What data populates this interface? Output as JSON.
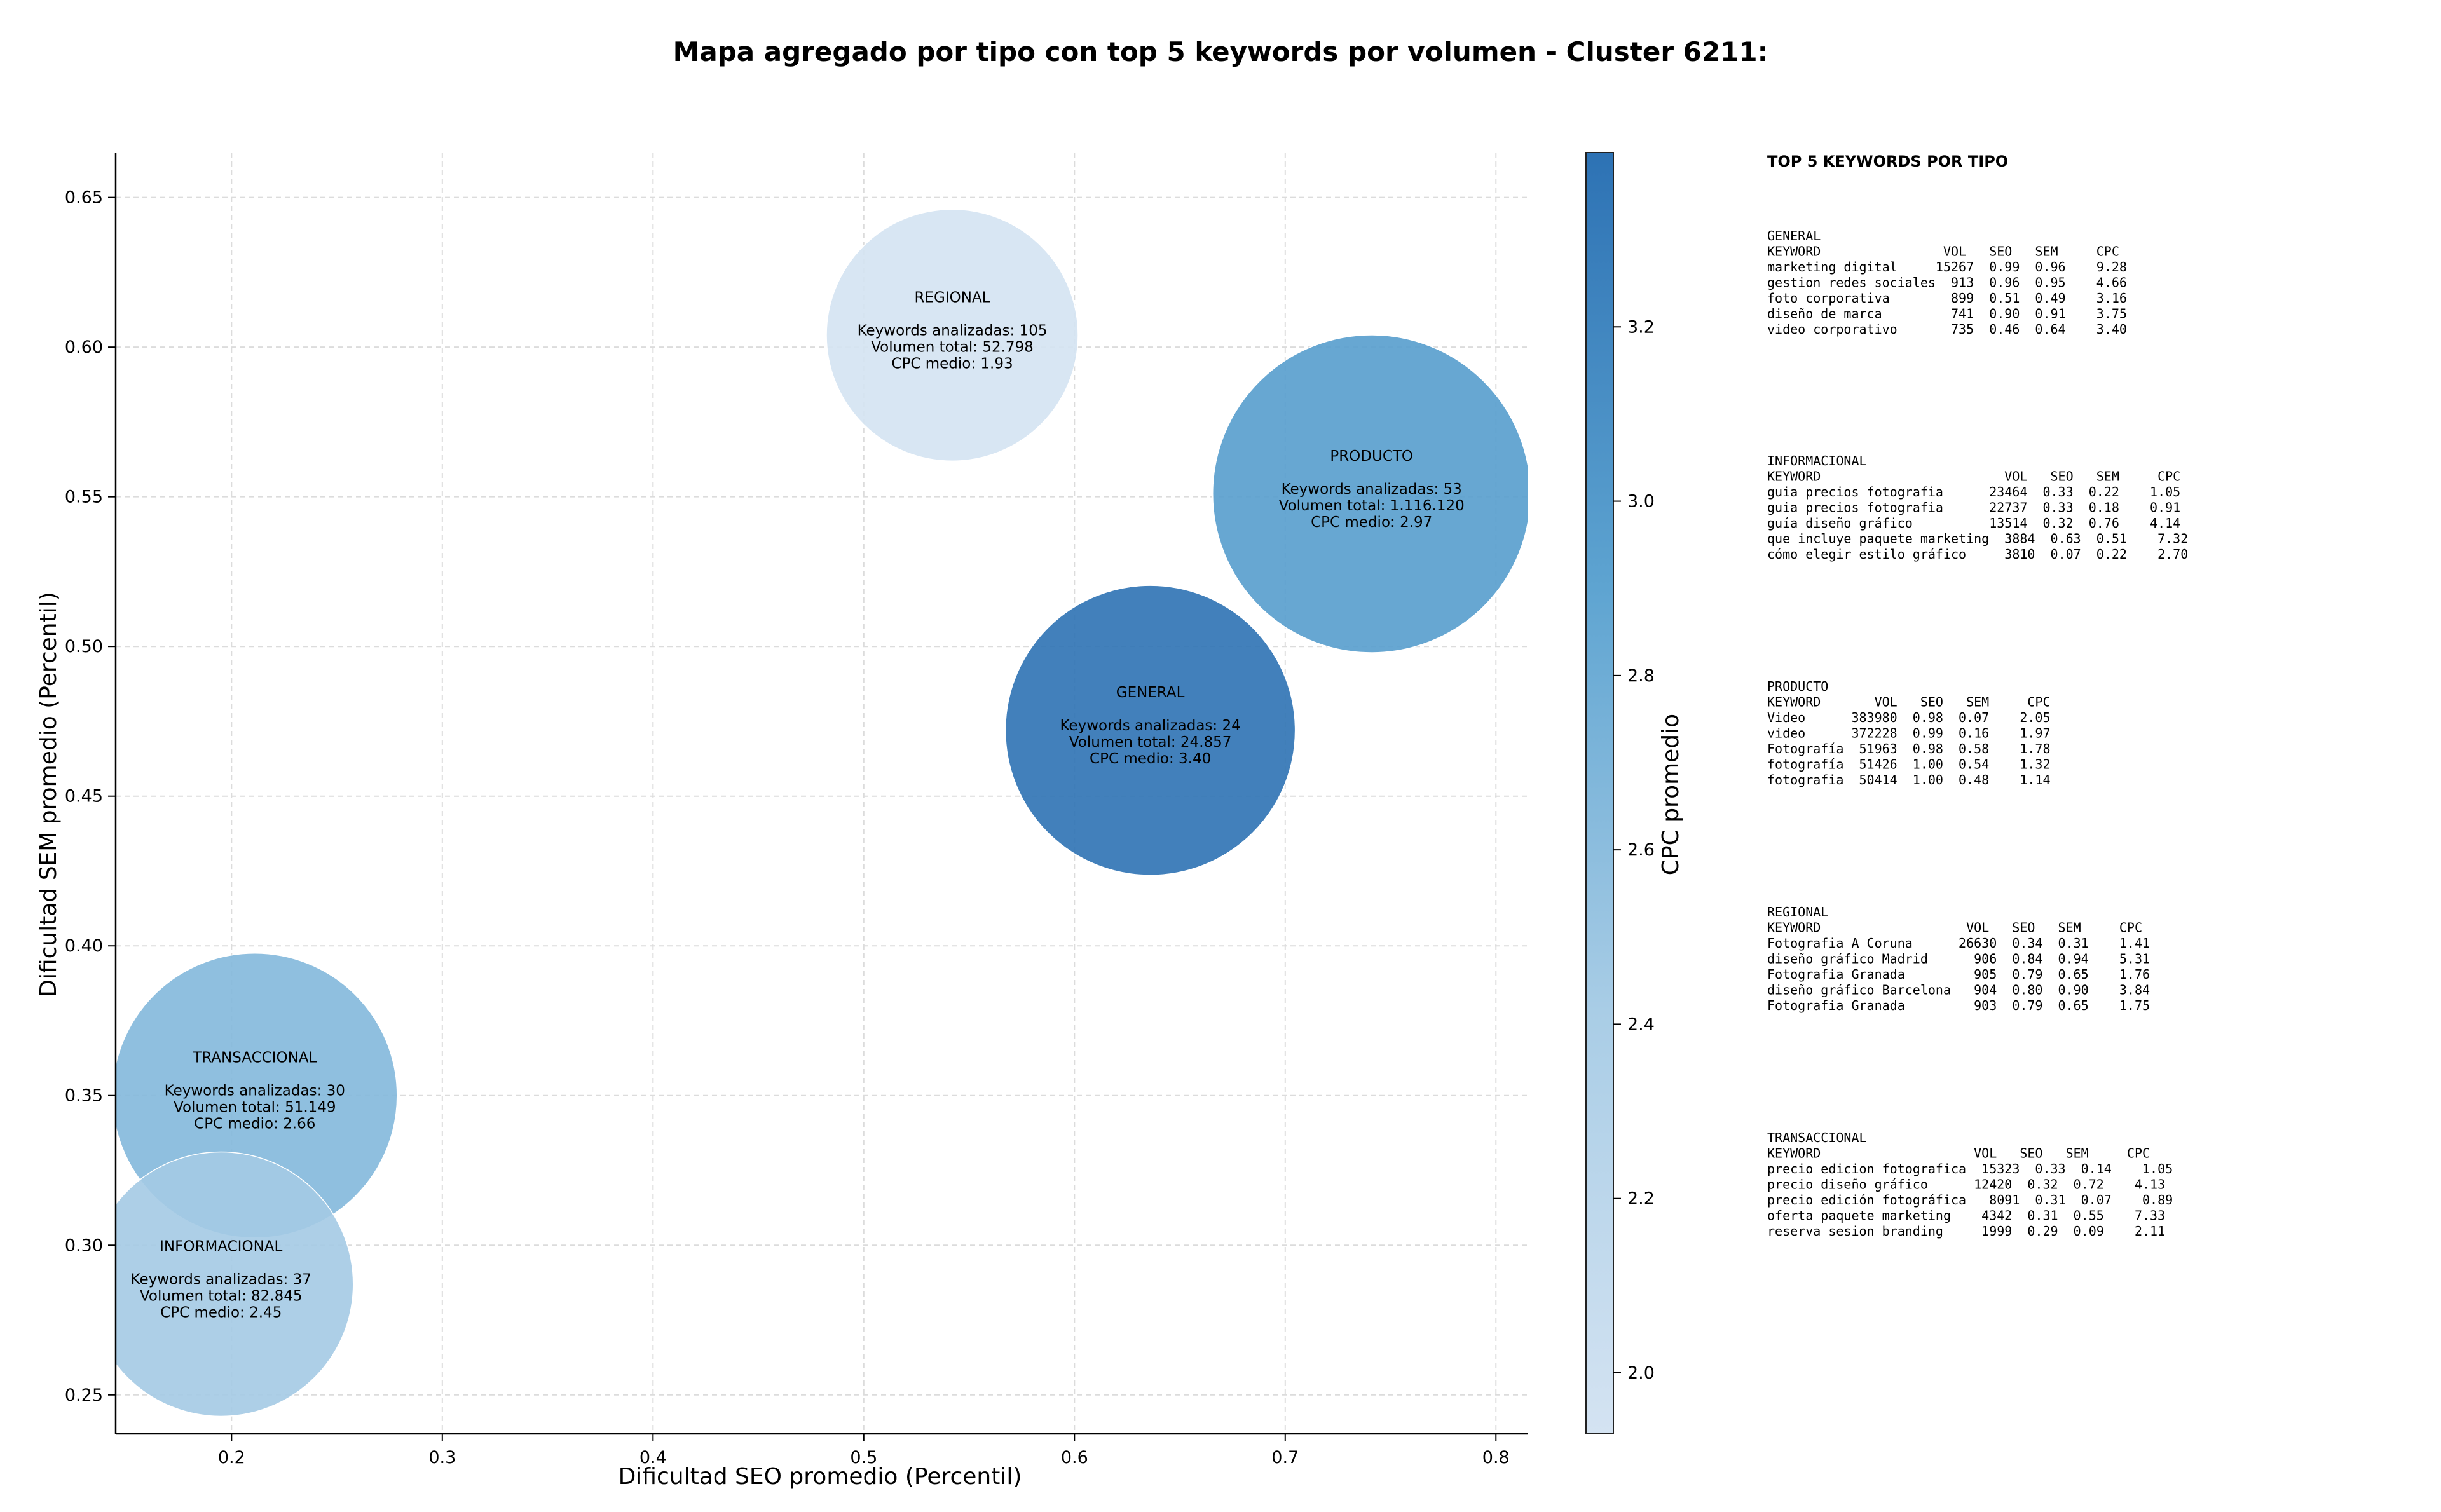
{
  "chart_data": {
    "type": "scatter",
    "title": "Mapa agregado por tipo con top 5 keywords por volumen - Cluster 6211:",
    "xlabel": "Dificultad SEO promedio (Percentil)",
    "ylabel": "Dificultad SEM promedio (Percentil)",
    "xlim": [
      0.145,
      0.815
    ],
    "ylim": [
      0.237,
      0.665
    ],
    "xticks": [
      "0.2",
      "0.3",
      "0.4",
      "0.5",
      "0.6",
      "0.7",
      "0.8"
    ],
    "yticks": [
      "0.25",
      "0.30",
      "0.35",
      "0.40",
      "0.45",
      "0.50",
      "0.55",
      "0.60",
      "0.65"
    ],
    "grid": true,
    "colorbar": {
      "label": "CPC promedio",
      "range": [
        1.93,
        3.4
      ],
      "ticks": [
        "2.0",
        "2.2",
        "2.4",
        "2.6",
        "2.8",
        "3.0",
        "3.2"
      ]
    },
    "bubbles": [
      {
        "tipo": "REGIONAL",
        "x": 0.542,
        "y": 0.604,
        "cpc": 1.93,
        "keywords_line": "Keywords analizadas: 105",
        "volumen_line": "Volumen total: 52.798",
        "cpc_line": "CPC medio: 1.93"
      },
      {
        "tipo": "PRODUCTO",
        "x": 0.741,
        "y": 0.551,
        "cpc": 2.97,
        "keywords_line": "Keywords analizadas: 53",
        "volumen_line": "Volumen total: 1.116.120",
        "cpc_line": "CPC medio: 2.97"
      },
      {
        "tipo": "GENERAL",
        "x": 0.636,
        "y": 0.472,
        "cpc": 3.4,
        "keywords_line": "Keywords analizadas: 24",
        "volumen_line": "Volumen total: 24.857",
        "cpc_line": "CPC medio: 3.40"
      },
      {
        "tipo": "TRANSACCIONAL",
        "x": 0.211,
        "y": 0.35,
        "cpc": 2.66,
        "keywords_line": "Keywords analizadas: 30",
        "volumen_line": "Volumen total: 51.149",
        "cpc_line": "CPC medio: 2.66"
      },
      {
        "tipo": "INFORMACIONAL",
        "x": 0.195,
        "y": 0.287,
        "cpc": 2.45,
        "keywords_line": "Keywords analizadas: 37",
        "volumen_line": "Volumen total: 82.845",
        "cpc_line": "CPC medio: 2.45"
      }
    ]
  },
  "top5_panel": {
    "title": "TOP 5 KEYWORDS POR TIPO",
    "blocks": [
      {
        "lines": [
          "GENERAL",
          "KEYWORD                VOL   SEO   SEM     CPC",
          "marketing digital     15267  0.99  0.96    9.28",
          "gestion redes sociales  913  0.96  0.95    4.66",
          "foto corporativa        899  0.51  0.49    3.16",
          "diseño de marca         741  0.90  0.91    3.75",
          "video corporativo       735  0.46  0.64    3.40"
        ]
      },
      {
        "lines": [
          "INFORMACIONAL",
          "KEYWORD                        VOL   SEO   SEM     CPC",
          "guia precios fotografia      23464  0.33  0.22    1.05",
          "guia precios fotografia      22737  0.33  0.18    0.91",
          "guía diseño gráfico          13514  0.32  0.76    4.14",
          "que incluye paquete marketing  3884  0.63  0.51    7.32",
          "cómo elegir estilo gráfico     3810  0.07  0.22    2.70"
        ]
      },
      {
        "lines": [
          "PRODUCTO",
          "KEYWORD       VOL   SEO   SEM     CPC",
          "Video      383980  0.98  0.07    2.05",
          "video      372228  0.99  0.16    1.97",
          "Fotografía  51963  0.98  0.58    1.78",
          "fotografía  51426  1.00  0.54    1.32",
          "fotografia  50414  1.00  0.48    1.14"
        ]
      },
      {
        "lines": [
          "REGIONAL",
          "KEYWORD                   VOL   SEO   SEM     CPC",
          "Fotografia A Coruna      26630  0.34  0.31    1.41",
          "diseño gráfico Madrid      906  0.84  0.94    5.31",
          "Fotografia Granada         905  0.79  0.65    1.76",
          "diseño gráfico Barcelona   904  0.80  0.90    3.84",
          "Fotografia Granada         903  0.79  0.65    1.75"
        ]
      },
      {
        "lines": [
          "TRANSACCIONAL",
          "KEYWORD                    VOL   SEO   SEM     CPC",
          "precio edicion fotografica  15323  0.33  0.14    1.05",
          "precio diseño gráfico      12420  0.32  0.72    4.13",
          "precio edición fotográfica   8091  0.31  0.07    0.89",
          "oferta paquete marketing    4342  0.31  0.55    7.33",
          "reserva sesion branding     1999  0.29  0.09    2.11"
        ]
      }
    ]
  }
}
